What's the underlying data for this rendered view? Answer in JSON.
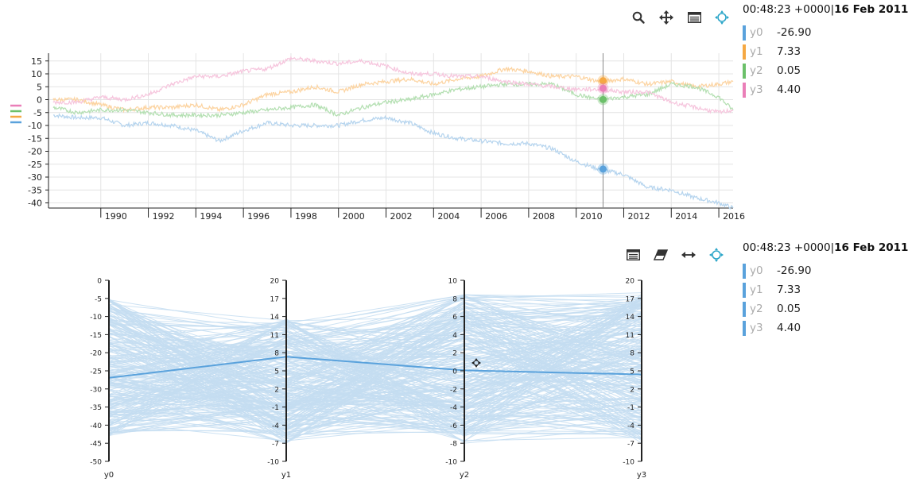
{
  "top_panel": {
    "toolbar": [
      {
        "name": "zoom-icon",
        "title": "zoom"
      },
      {
        "name": "pan-icon",
        "title": "pan"
      },
      {
        "name": "legend-toggle-icon",
        "title": "legend"
      },
      {
        "name": "crosshair-icon",
        "title": "crosshair"
      }
    ],
    "legend": {
      "time": "00:48:23 +0000|",
      "date": "16 Feb 2011",
      "items": [
        {
          "name": "y0",
          "value": "-26.90",
          "color": "#5aa2dc"
        },
        {
          "name": "y1",
          "value": "7.33",
          "color": "#f5a843"
        },
        {
          "name": "y2",
          "value": "0.05",
          "color": "#6cc06a"
        },
        {
          "name": "y3",
          "value": "4.40",
          "color": "#ea7fb8"
        }
      ]
    }
  },
  "bottom_panel": {
    "toolbar": [
      {
        "name": "legend-toggle-icon",
        "title": "legend"
      },
      {
        "name": "eraser-icon",
        "title": "clear selection"
      },
      {
        "name": "horizontal-resize-icon",
        "title": "brush"
      },
      {
        "name": "crosshair-icon",
        "title": "crosshair"
      }
    ],
    "legend": {
      "time": "00:48:23 +0000|",
      "date": "16 Feb 2011",
      "items": [
        {
          "name": "y0",
          "value": "-26.90",
          "color": "#5aa2dc"
        },
        {
          "name": "y1",
          "value": "7.33",
          "color": "#5aa2dc"
        },
        {
          "name": "y2",
          "value": "0.05",
          "color": "#5aa2dc"
        },
        {
          "name": "y3",
          "value": "4.40",
          "color": "#5aa2dc"
        }
      ]
    }
  },
  "chart_data": [
    {
      "type": "line",
      "title": "",
      "xlabel": "",
      "ylabel": "",
      "x_ticks": [
        "1990",
        "1992",
        "1994",
        "1996",
        "1998",
        "2000",
        "2002",
        "2004",
        "2006",
        "2008",
        "2010",
        "2012",
        "2014",
        "2016"
      ],
      "y_ticks": [
        15,
        10,
        5,
        0,
        -5,
        -10,
        -15,
        -20,
        -25,
        -30,
        -35,
        -40
      ],
      "xlim": [
        1987.8,
        2016.6
      ],
      "ylim": [
        -42,
        18
      ],
      "grid": true,
      "cursor_x": 2011.13,
      "series": [
        {
          "name": "y0",
          "color": "#b5d4ee",
          "marker_color": "#5aa2dc",
          "x": [
            1988,
            1989,
            1990,
            1991,
            1992,
            1993,
            1994,
            1995,
            1996,
            1997,
            1998,
            1999,
            2000,
            2001,
            2002,
            2003,
            2004,
            2005,
            2006,
            2007,
            2008,
            2009,
            2010,
            2011,
            2012,
            2013,
            2014,
            2015,
            2016,
            2016.6
          ],
          "y": [
            -6,
            -7,
            -7,
            -10,
            -9,
            -10,
            -12,
            -16,
            -12,
            -9,
            -10,
            -10,
            -10,
            -8,
            -7,
            -9,
            -13,
            -15,
            -16,
            -17,
            -17,
            -19,
            -24,
            -27,
            -29,
            -34,
            -35,
            -38,
            -40,
            -42
          ]
        },
        {
          "name": "y1",
          "color": "#fcd3a0",
          "marker_color": "#f5a843",
          "x": [
            1988,
            1989,
            1990,
            1991,
            1992,
            1993,
            1994,
            1995,
            1996,
            1997,
            1998,
            1999,
            2000,
            2001,
            2002,
            2003,
            2004,
            2005,
            2006,
            2007,
            2008,
            2009,
            2010,
            2011,
            2012,
            2013,
            2014,
            2015,
            2016,
            2016.6
          ],
          "y": [
            0,
            0,
            -2,
            -4,
            -3,
            -3,
            -2,
            -4,
            -2,
            2,
            3,
            5,
            3,
            6,
            7,
            8,
            6,
            8,
            9,
            12,
            11,
            9,
            9,
            7,
            8,
            6,
            7,
            5,
            6,
            7
          ]
        },
        {
          "name": "y2",
          "color": "#b3dfb1",
          "marker_color": "#6cc06a",
          "x": [
            1988,
            1989,
            1990,
            1991,
            1992,
            1993,
            1994,
            1995,
            1996,
            1997,
            1998,
            1999,
            2000,
            2001,
            2002,
            2003,
            2004,
            2005,
            2006,
            2007,
            2008,
            2009,
            2010,
            2011,
            2012,
            2013,
            2014,
            2015,
            2016,
            2016.6
          ],
          "y": [
            -3,
            -5,
            -4,
            -4,
            -5,
            -6,
            -6,
            -6,
            -5,
            -4,
            -3,
            -2,
            -6,
            -3,
            -1,
            0,
            2,
            4,
            5,
            6,
            6,
            6,
            2,
            0,
            1,
            2,
            6,
            5,
            1,
            -4
          ]
        },
        {
          "name": "y3",
          "color": "#f6c5dd",
          "marker_color": "#ea7fb8",
          "x": [
            1988,
            1989,
            1990,
            1991,
            1992,
            1993,
            1994,
            1995,
            1996,
            1997,
            1998,
            1999,
            2000,
            2001,
            2002,
            2003,
            2004,
            2005,
            2006,
            2007,
            2008,
            2009,
            2010,
            2011,
            2012,
            2013,
            2014,
            2015,
            2016,
            2016.6
          ],
          "y": [
            -1,
            -1,
            1,
            0,
            2,
            6,
            9,
            9,
            11,
            12,
            16,
            15,
            14,
            15,
            13,
            10,
            10,
            9,
            9,
            7,
            6,
            5,
            4,
            4,
            3,
            3,
            -1,
            -3,
            -5,
            -4
          ]
        }
      ],
      "cursor_values": {
        "y0": -26.9,
        "y1": 7.33,
        "y2": 0.05,
        "y3": 4.4
      }
    },
    {
      "type": "parallel_coordinates",
      "title": "",
      "axes": [
        {
          "name": "y0",
          "range": [
            -50,
            0
          ],
          "ticks": [
            0,
            -5,
            -10,
            -15,
            -20,
            -25,
            -30,
            -35,
            -40,
            -45,
            -50
          ]
        },
        {
          "name": "y1",
          "range": [
            -10,
            20
          ],
          "ticks": [
            20,
            17,
            14,
            11,
            8,
            5,
            2,
            -1,
            -4,
            -7,
            -10
          ]
        },
        {
          "name": "y2",
          "range": [
            -10,
            10
          ],
          "ticks": [
            10,
            8,
            6,
            4,
            2,
            0,
            -2,
            -4,
            -6,
            -8,
            -10
          ]
        },
        {
          "name": "y3",
          "range": [
            -10,
            20
          ],
          "ticks": [
            20,
            17,
            14,
            11,
            8,
            5,
            2,
            -1,
            -4,
            -7,
            -10
          ]
        }
      ],
      "highlight": [
        -26.9,
        7.33,
        0.05,
        4.4
      ],
      "line_color": "#c4ddf1",
      "highlight_color": "#5aa2dc"
    }
  ]
}
